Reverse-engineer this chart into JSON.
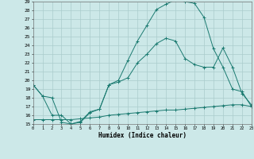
{
  "xlabel": "Humidex (Indice chaleur)",
  "bg_color": "#cce8e8",
  "line_color": "#1a7a70",
  "grid_color": "#aacccc",
  "xlim": [
    0,
    23
  ],
  "ylim": [
    15,
    29
  ],
  "xticks": [
    0,
    1,
    2,
    3,
    4,
    5,
    6,
    7,
    8,
    9,
    10,
    11,
    12,
    13,
    14,
    15,
    16,
    17,
    18,
    19,
    20,
    21,
    22,
    23
  ],
  "yticks": [
    15,
    16,
    17,
    18,
    19,
    20,
    21,
    22,
    23,
    24,
    25,
    26,
    27,
    28,
    29
  ],
  "line1_x": [
    0,
    1,
    2,
    3,
    4,
    5,
    6,
    7,
    8,
    9,
    10,
    11,
    12,
    13,
    14,
    15,
    16,
    17,
    18,
    19,
    20,
    21,
    22,
    23
  ],
  "line1_y": [
    19.5,
    18.2,
    16.0,
    16.0,
    15.0,
    15.2,
    16.3,
    16.7,
    19.5,
    20.0,
    22.3,
    24.5,
    26.3,
    28.1,
    28.7,
    29.2,
    29.0,
    28.8,
    27.2,
    23.6,
    21.5,
    19.0,
    18.7,
    17.0
  ],
  "line2_x": [
    0,
    1,
    2,
    3,
    4,
    5,
    6,
    7,
    8,
    9,
    10,
    11,
    12,
    13,
    14,
    15,
    16,
    17,
    18,
    19,
    20,
    21,
    22,
    23
  ],
  "line2_y": [
    19.5,
    18.2,
    18.0,
    15.2,
    15.0,
    15.3,
    16.4,
    16.7,
    19.5,
    19.8,
    20.3,
    22.0,
    23.0,
    24.2,
    24.8,
    24.5,
    22.5,
    21.8,
    21.5,
    21.5,
    23.7,
    21.5,
    18.5,
    17.2
  ],
  "line3_x": [
    0,
    1,
    2,
    3,
    4,
    5,
    6,
    7,
    8,
    9,
    10,
    11,
    12,
    13,
    14,
    15,
    16,
    17,
    18,
    19,
    20,
    21,
    22,
    23
  ],
  "line3_y": [
    15.5,
    15.5,
    15.5,
    15.5,
    15.5,
    15.6,
    15.7,
    15.8,
    16.0,
    16.1,
    16.2,
    16.3,
    16.4,
    16.5,
    16.6,
    16.6,
    16.7,
    16.8,
    16.9,
    17.0,
    17.1,
    17.2,
    17.2,
    17.0
  ]
}
